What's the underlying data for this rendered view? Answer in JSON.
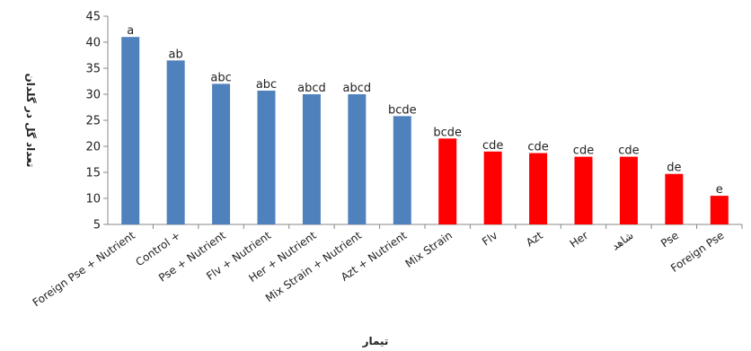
{
  "chart_data": {
    "type": "bar",
    "title": "",
    "xlabel": "تیمار",
    "ylabel": "تعداد گل در گلدان",
    "ylim": [
      5,
      45
    ],
    "yticks": [
      5,
      10,
      15,
      20,
      25,
      30,
      35,
      40,
      45
    ],
    "grid": false,
    "legend": "none",
    "categories": [
      "Foreign Pse + Nutrient",
      "Control +",
      "Pse + Nutrient",
      "Flv + Nutrient",
      "Her + Nutrient",
      "Mix Strain + Nutrient",
      "Azt + Nutrient",
      "Mix Strain",
      "Flv",
      "Azt",
      "Her",
      "شاهد",
      "Pse",
      "Foreign Pse"
    ],
    "values": [
      41,
      36.5,
      32,
      30.7,
      30,
      30,
      25.8,
      21.5,
      19,
      18.7,
      18,
      18,
      14.7,
      10.5
    ],
    "data_labels": [
      "a",
      "ab",
      "abc",
      "abc",
      "abcd",
      "abcd",
      "bcde",
      "bcde",
      "cde",
      "cde",
      "cde",
      "cde",
      "de",
      "e"
    ],
    "bar_colors": [
      "#4f81bd",
      "#4f81bd",
      "#4f81bd",
      "#4f81bd",
      "#4f81bd",
      "#4f81bd",
      "#4f81bd",
      "#ff0000",
      "#ff0000",
      "#ff0000",
      "#ff0000",
      "#ff0000",
      "#ff0000",
      "#ff0000"
    ]
  }
}
